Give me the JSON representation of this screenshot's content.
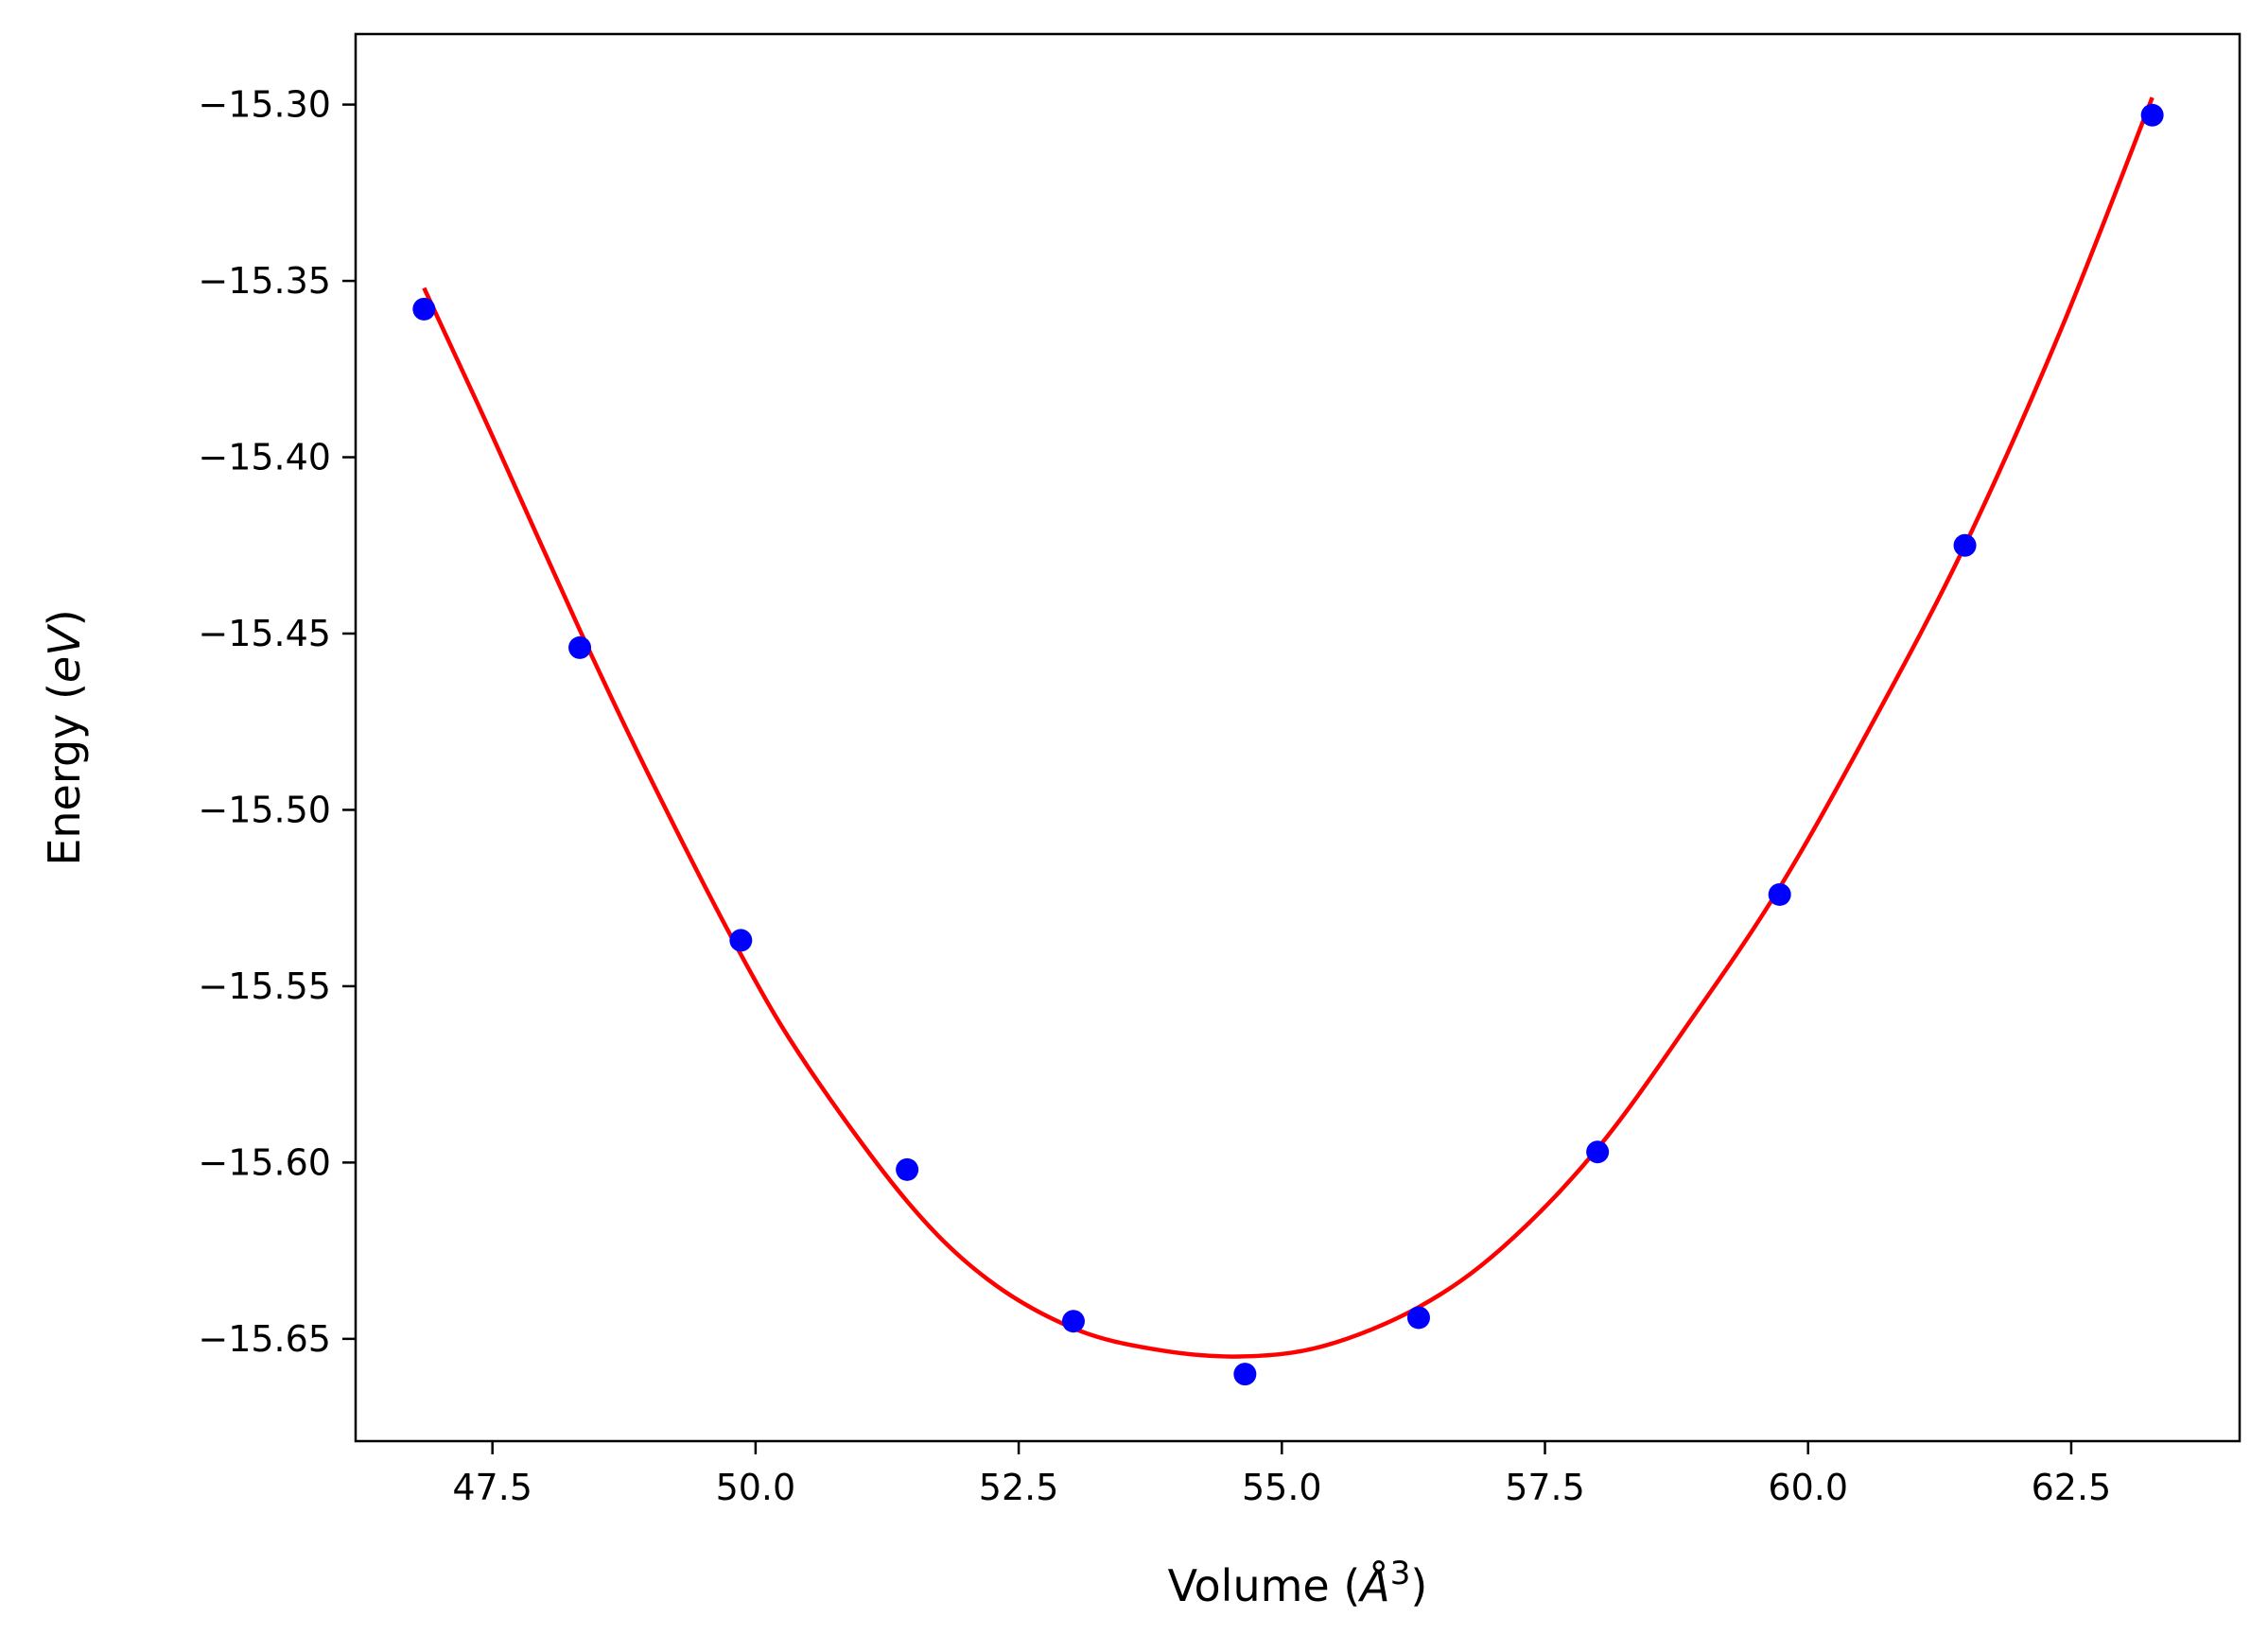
{
  "chart_data": {
    "type": "scatter",
    "title": "",
    "xlabel_parts": {
      "prefix": "Volume (",
      "symbol": "Å",
      "exponent": "3",
      "suffix": ")"
    },
    "ylabel_parts": {
      "prefix": "Energy (",
      "symbol": "eV",
      "suffix": ")"
    },
    "xlim": [
      46.2,
      64.1
    ],
    "ylim": [
      -15.679,
      -15.28
    ],
    "x_ticks": [
      47.5,
      50.0,
      52.5,
      55.0,
      57.5,
      60.0,
      62.5
    ],
    "x_tick_labels": [
      "47.5",
      "50.0",
      "52.5",
      "55.0",
      "57.5",
      "60.0",
      "62.5"
    ],
    "y_ticks": [
      -15.3,
      -15.35,
      -15.4,
      -15.45,
      -15.5,
      -15.55,
      -15.6,
      -15.65
    ],
    "y_tick_labels": [
      "−15.30",
      "−15.35",
      "−15.40",
      "−15.45",
      "−15.50",
      "−15.55",
      "−15.60",
      "−15.65"
    ],
    "grid": false,
    "series": [
      {
        "kind": "points",
        "color": "#0000ff",
        "x": [
          46.85,
          48.33,
          49.86,
          51.44,
          53.02,
          54.65,
          56.3,
          58.0,
          59.73,
          61.49,
          63.27
        ],
        "y": [
          -15.358,
          -15.454,
          -15.537,
          -15.602,
          -15.645,
          -15.66,
          -15.644,
          -15.597,
          -15.524,
          -15.425,
          -15.303
        ]
      },
      {
        "kind": "fit-curve",
        "color": "#ff0000",
        "x": [
          46.85,
          47.5,
          48.33,
          49.0,
          49.86,
          50.5,
          51.44,
          52.2,
          53.02,
          53.8,
          54.6,
          55.4,
          56.3,
          57.1,
          58.0,
          58.9,
          59.73,
          60.6,
          61.49,
          62.4,
          63.27
        ],
        "y": [
          -15.352,
          -15.394,
          -15.449,
          -15.491,
          -15.541,
          -15.573,
          -15.611,
          -15.633,
          -15.647,
          -15.653,
          -15.655,
          -15.652,
          -15.641,
          -15.624,
          -15.596,
          -15.559,
          -15.522,
          -15.476,
          -15.425,
          -15.364,
          -15.298
        ]
      }
    ]
  }
}
